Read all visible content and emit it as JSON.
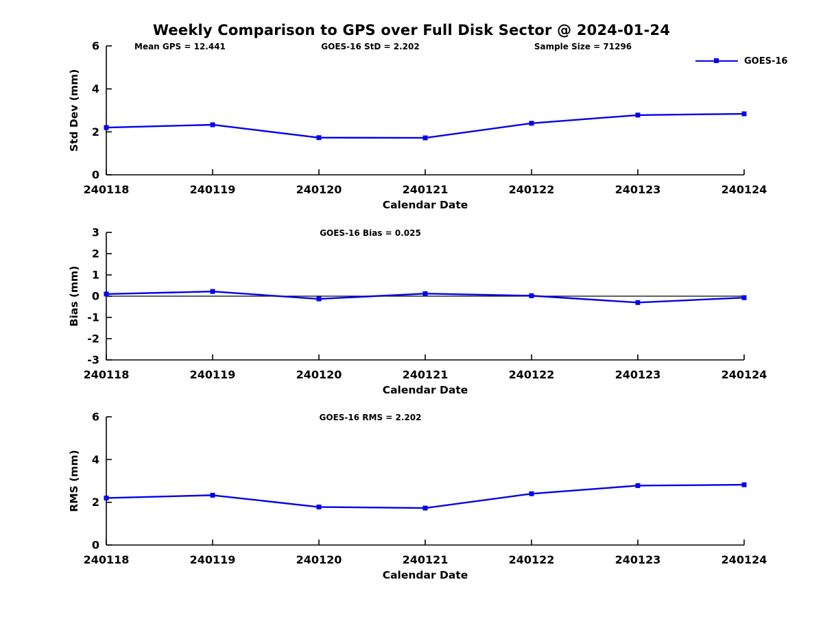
{
  "title": "Weekly Comparison to GPS over Full Disk Sector @ 2024-01-24",
  "legend": {
    "label": "GOES-16"
  },
  "colors": {
    "series": "#0000ee",
    "axis": "#000000",
    "text": "#000000",
    "background": "#ffffff"
  },
  "chart_data": [
    {
      "type": "line",
      "title": "Std Dev subplot",
      "annotations": [
        "Mean GPS = 12.441",
        "GOES-16 StD = 2.202",
        "Sample Size = 71296"
      ],
      "x": [
        "240118",
        "240119",
        "240120",
        "240121",
        "240122",
        "240123",
        "240124"
      ],
      "series": [
        {
          "name": "GOES-16",
          "values": [
            2.2,
            2.33,
            1.73,
            1.72,
            2.4,
            2.78,
            2.84
          ]
        }
      ],
      "xlabel": "Calendar Date",
      "ylabel": "Std Dev (mm)",
      "ylim": [
        0,
        6
      ],
      "yticks": [
        0,
        2,
        4,
        6
      ],
      "zero_line": false,
      "grid": false,
      "legend_position": "top-right",
      "marker": "square"
    },
    {
      "type": "line",
      "title": "Bias subplot",
      "annotations": [
        "GOES-16 Bias  = 0.025"
      ],
      "x": [
        "240118",
        "240119",
        "240120",
        "240121",
        "240122",
        "240123",
        "240124"
      ],
      "series": [
        {
          "name": "GOES-16",
          "values": [
            0.1,
            0.22,
            -0.13,
            0.12,
            0.02,
            -0.3,
            -0.07
          ]
        }
      ],
      "xlabel": "Calendar Date",
      "ylabel": "Bias (mm)",
      "ylim": [
        -3,
        3
      ],
      "yticks": [
        -3,
        -2,
        -1,
        0,
        1,
        2,
        3
      ],
      "zero_line": true,
      "grid": false,
      "legend_position": "none",
      "marker": "square"
    },
    {
      "type": "line",
      "title": "RMS subplot",
      "annotations": [
        "GOES-16 RMS = 2.202"
      ],
      "x": [
        "240118",
        "240119",
        "240120",
        "240121",
        "240122",
        "240123",
        "240124"
      ],
      "series": [
        {
          "name": "GOES-16",
          "values": [
            2.2,
            2.33,
            1.78,
            1.73,
            2.4,
            2.78,
            2.82
          ]
        }
      ],
      "xlabel": "Calendar Date",
      "ylabel": "RMS (mm)",
      "ylim": [
        0,
        6
      ],
      "yticks": [
        0,
        2,
        4,
        6
      ],
      "zero_line": false,
      "grid": false,
      "legend_position": "none",
      "marker": "square"
    }
  ]
}
